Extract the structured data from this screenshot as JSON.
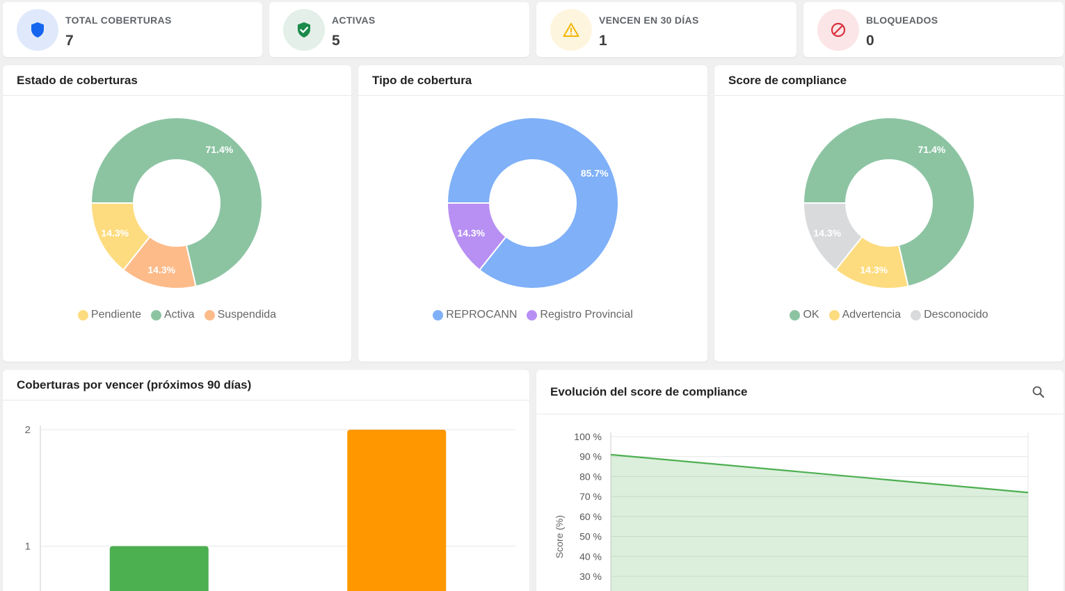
{
  "stats": [
    {
      "label": "TOTAL COBERTURAS",
      "value": "7",
      "icon": "shield-icon",
      "bg": "#dfe9fb",
      "color": "#1565ef"
    },
    {
      "label": "ACTIVAS",
      "value": "5",
      "icon": "shield-check-icon",
      "bg": "#e3efe8",
      "color": "#1b8a4b"
    },
    {
      "label": "VENCEN EN 30 DÍAS",
      "value": "1",
      "icon": "warning-icon",
      "bg": "#fdf5dd",
      "color": "#f3b500"
    },
    {
      "label": "BLOQUEADOS",
      "value": "0",
      "icon": "block-icon",
      "bg": "#fbe5e7",
      "color": "#d9313c"
    }
  ],
  "panels": {
    "estado": {
      "title": "Estado de coberturas"
    },
    "tipo": {
      "title": "Tipo de cobertura"
    },
    "score": {
      "title": "Score de compliance"
    },
    "vencer": {
      "title": "Coberturas por vencer (próximos 90 días)"
    },
    "evolucion": {
      "title": "Evolución del score de compliance"
    }
  },
  "chart_data": [
    {
      "type": "pie",
      "title": "Estado de coberturas",
      "donut": true,
      "slices": [
        {
          "name": "Activa",
          "value": 71.4,
          "label": "71.4%",
          "color": "#8cc4a2"
        },
        {
          "name": "Suspendida",
          "value": 14.3,
          "label": "14.3%",
          "color": "#fdbb8a"
        },
        {
          "name": "Pendiente",
          "value": 14.3,
          "label": "14.3%",
          "color": "#fddc7f"
        }
      ],
      "legend": [
        "Pendiente",
        "Activa",
        "Suspendida"
      ],
      "legend_colors": [
        "#fddc7f",
        "#8cc4a2",
        "#fdbb8a"
      ],
      "legend_position": "bottom"
    },
    {
      "type": "pie",
      "title": "Tipo de cobertura",
      "donut": true,
      "slices": [
        {
          "name": "REPROCANN",
          "value": 85.7,
          "label": "85.7%",
          "color": "#7fb0f8"
        },
        {
          "name": "Registro Provincial",
          "value": 14.3,
          "label": "14.3%",
          "color": "#b890f3"
        }
      ],
      "legend": [
        "REPROCANN",
        "Registro Provincial"
      ],
      "legend_colors": [
        "#7fb0f8",
        "#b890f3"
      ],
      "legend_position": "bottom"
    },
    {
      "type": "pie",
      "title": "Score de compliance",
      "donut": true,
      "slices": [
        {
          "name": "OK",
          "value": 71.4,
          "label": "71.4%",
          "color": "#8cc4a2"
        },
        {
          "name": "Advertencia",
          "value": 14.3,
          "label": "14.3%",
          "color": "#fddc7f"
        },
        {
          "name": "Desconocido",
          "value": 14.3,
          "label": "14.3%",
          "color": "#d9dadc"
        }
      ],
      "legend": [
        "OK",
        "Advertencia",
        "Desconocido"
      ],
      "legend_colors": [
        "#8cc4a2",
        "#fddc7f",
        "#d9dadc"
      ],
      "legend_position": "bottom"
    },
    {
      "type": "bar",
      "title": "Coberturas por vencer (próximos 90 días)",
      "categories": [
        "",
        ""
      ],
      "values": [
        1,
        2
      ],
      "colors": [
        "#4caf50",
        "#ff9800"
      ],
      "yticks": [
        "1",
        "2"
      ],
      "ylim": [
        0,
        2
      ],
      "grid": true
    },
    {
      "type": "area",
      "title": "Evolución del score de compliance",
      "ylabel": "Score (%)",
      "yticks": [
        "30 %",
        "40 %",
        "50 %",
        "60 %",
        "70 %",
        "80 %",
        "90 %",
        "100 %"
      ],
      "ylim": [
        0,
        100
      ],
      "series": [
        {
          "values": [
            91,
            72
          ]
        }
      ],
      "color": "#4caf50",
      "grid": true,
      "zoom_icon": "zoom-icon"
    }
  ]
}
